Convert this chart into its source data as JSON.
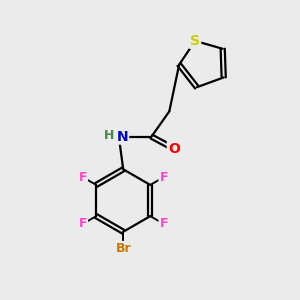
{
  "background_color": "#ebebeb",
  "atom_colors": {
    "S": "#cccc00",
    "O": "#ff0000",
    "N": "#0000cc",
    "H": "#448844",
    "F": "#ff44cc",
    "Br": "#cc7700",
    "C": "#000000"
  },
  "bond_color": "#000000",
  "bond_width": 1.6,
  "figsize": [
    3.0,
    3.0
  ],
  "dpi": 100
}
